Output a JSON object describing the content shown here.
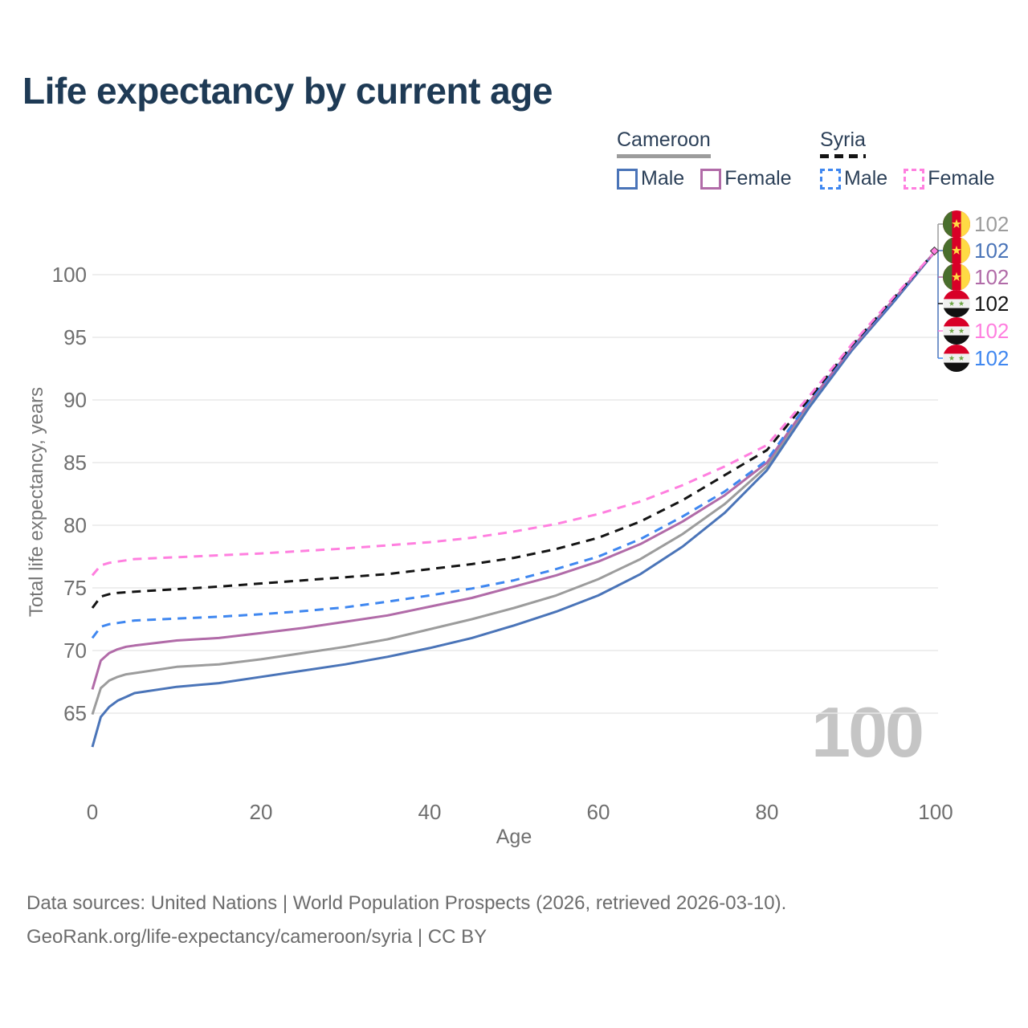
{
  "header": {
    "title": "Life expectancy by current age"
  },
  "legend": {
    "groups": [
      {
        "name": "Cameroon",
        "line_style": "solid",
        "line_color": "#9c9c9c",
        "items": [
          {
            "label": "Male",
            "color": "#4a74b8",
            "dashed": false
          },
          {
            "label": "Female",
            "color": "#b16ba8",
            "dashed": false
          }
        ]
      },
      {
        "name": "Syria",
        "line_style": "dashed",
        "line_color": "#141414",
        "items": [
          {
            "label": "Male",
            "color": "#3f87f0",
            "dashed": true
          },
          {
            "label": "Female",
            "color": "#ff7fdf",
            "dashed": true
          }
        ]
      }
    ]
  },
  "chart_data": {
    "type": "line",
    "title": "Life expectancy by current age",
    "xlabel": "Age",
    "ylabel": "Total life expectancy, years",
    "xlim": [
      0,
      100
    ],
    "ylim": [
      62,
      103
    ],
    "xticks": [
      0,
      20,
      40,
      60,
      80,
      100
    ],
    "yticks": [
      65,
      70,
      75,
      80,
      85,
      90,
      95,
      100
    ],
    "grid": "horizontal",
    "legend_position": "top-right",
    "x": [
      0,
      1,
      2,
      3,
      4,
      5,
      10,
      15,
      20,
      25,
      30,
      35,
      40,
      45,
      50,
      55,
      60,
      65,
      70,
      75,
      80,
      85,
      90,
      95,
      100
    ],
    "series": [
      {
        "id": "cameroon-total",
        "name": "Cameroon (both sexes)",
        "country": "Cameroon",
        "sex": "Both",
        "color": "#9c9c9c",
        "dashed": false,
        "values": [
          64.9,
          67.0,
          67.6,
          67.9,
          68.1,
          68.2,
          68.7,
          68.9,
          69.3,
          69.8,
          70.3,
          70.9,
          71.7,
          72.5,
          73.4,
          74.4,
          75.7,
          77.3,
          79.3,
          81.7,
          84.7,
          89.6,
          94.0,
          97.9,
          101.9
        ]
      },
      {
        "id": "cameroon-male",
        "name": "Cameroon Male",
        "country": "Cameroon",
        "sex": "Male",
        "color": "#4a74b8",
        "dashed": false,
        "values": [
          62.3,
          64.7,
          65.5,
          66.0,
          66.3,
          66.6,
          67.1,
          67.4,
          67.9,
          68.4,
          68.9,
          69.5,
          70.2,
          71.0,
          72.0,
          73.1,
          74.4,
          76.1,
          78.3,
          81.0,
          84.4,
          89.4,
          93.9,
          97.8,
          101.9
        ]
      },
      {
        "id": "cameroon-female",
        "name": "Cameroon Female",
        "country": "Cameroon",
        "sex": "Female",
        "color": "#b16ba8",
        "dashed": false,
        "values": [
          66.9,
          69.2,
          69.8,
          70.1,
          70.3,
          70.4,
          70.8,
          71.0,
          71.4,
          71.8,
          72.3,
          72.8,
          73.5,
          74.2,
          75.1,
          76.0,
          77.1,
          78.5,
          80.3,
          82.4,
          85.0,
          89.8,
          94.1,
          98.0,
          101.9
        ]
      },
      {
        "id": "syria-male",
        "name": "Syria Male",
        "country": "Syria",
        "sex": "Male",
        "color": "#3f87f0",
        "dashed": true,
        "values": [
          71.0,
          71.9,
          72.1,
          72.2,
          72.3,
          72.4,
          72.55,
          72.7,
          72.9,
          73.15,
          73.45,
          73.9,
          74.4,
          74.95,
          75.6,
          76.5,
          77.5,
          78.9,
          80.7,
          82.7,
          85.2,
          89.9,
          94.2,
          98.0,
          101.9
        ]
      },
      {
        "id": "syria-total",
        "name": "Syria (both sexes)",
        "country": "Syria",
        "sex": "Both",
        "color": "#141414",
        "dashed": true,
        "values": [
          73.4,
          74.3,
          74.5,
          74.6,
          74.65,
          74.7,
          74.9,
          75.1,
          75.35,
          75.6,
          75.85,
          76.1,
          76.5,
          76.9,
          77.4,
          78.1,
          79.0,
          80.3,
          82.0,
          84.0,
          86.0,
          90.1,
          94.3,
          98.1,
          101.9
        ]
      },
      {
        "id": "syria-female",
        "name": "Syria Female",
        "country": "Syria",
        "sex": "Female",
        "color": "#ff7fdf",
        "dashed": true,
        "values": [
          76.0,
          76.8,
          77.0,
          77.1,
          77.2,
          77.3,
          77.45,
          77.6,
          77.75,
          77.95,
          78.15,
          78.4,
          78.65,
          79.0,
          79.5,
          80.1,
          80.9,
          81.9,
          83.2,
          84.7,
          86.4,
          90.3,
          94.4,
          98.2,
          101.9
        ]
      }
    ],
    "end_value_annotation": 102
  },
  "end_labels": {
    "rows": [
      {
        "flag": "cameroon",
        "value": "102",
        "color": "#9c9c9c"
      },
      {
        "flag": "cameroon",
        "value": "102",
        "color": "#4a74b8"
      },
      {
        "flag": "cameroon",
        "value": "102",
        "color": "#b16ba8"
      },
      {
        "flag": "syria",
        "value": "102",
        "color": "#141414"
      },
      {
        "flag": "syria",
        "value": "102",
        "color": "#ff7fdf"
      },
      {
        "flag": "syria",
        "value": "102",
        "color": "#3f87f0"
      }
    ]
  },
  "watermark": {
    "text": "100"
  },
  "footer": {
    "line1": "Data sources: United Nations | World Population Prospects (2026, retrieved 2026-03-10).",
    "line2": "GeoRank.org/life-expectancy/cameroon/syria | CC BY"
  },
  "colors": {
    "title_text": "#1e3a55",
    "legend_text": "#2c4058",
    "axis_text": "#6f6f6f",
    "gridline": "#e8e8e8",
    "watermark": "#c5c5c5",
    "footer_text": "#6c6c6c",
    "flag_green_cameroon": "#496e2d",
    "flag_red": "#d80027",
    "flag_yellow": "#ffda44",
    "flag_white": "#f0f0f0",
    "flag_black": "#111111",
    "flag_green_syria": "#6da544"
  }
}
